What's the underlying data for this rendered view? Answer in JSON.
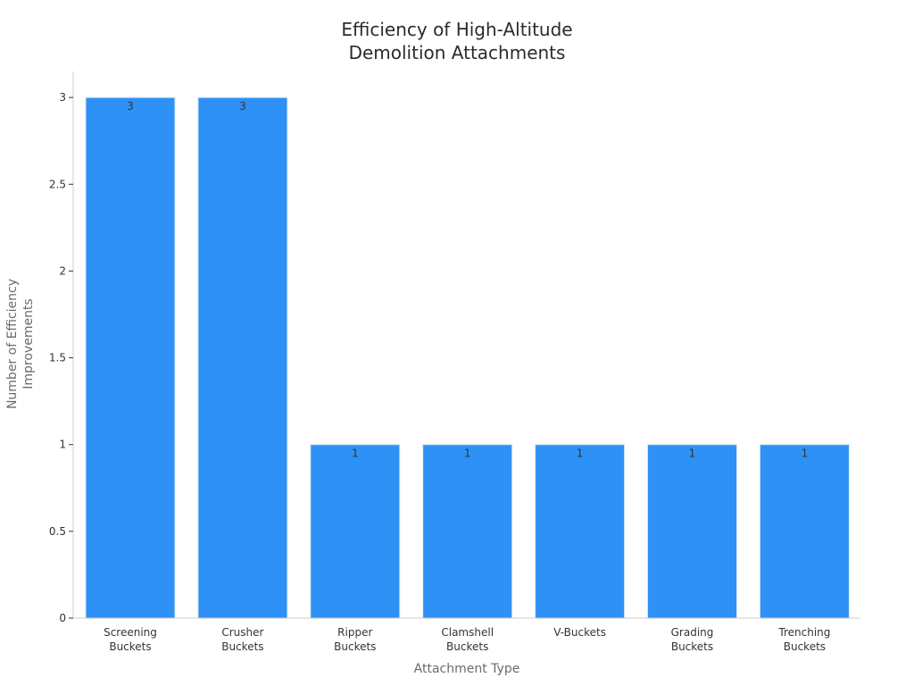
{
  "chart_data": {
    "type": "bar",
    "title": "Efficiency of High-Altitude\nDemolition Attachments",
    "xlabel": "Attachment Type",
    "ylabel": "Number of Efficiency\nImprovements",
    "categories": [
      "Screening\nBuckets",
      "Crusher\nBuckets",
      "Ripper\nBuckets",
      "Clamshell\nBuckets",
      "V-Buckets",
      "Grading\nBuckets",
      "Trenching\nBuckets"
    ],
    "values": [
      3,
      3,
      1,
      1,
      1,
      1,
      1
    ],
    "data_labels": [
      "3",
      "3",
      "1",
      "1",
      "1",
      "1",
      "1"
    ],
    "ylim": [
      0,
      3.15
    ],
    "yticks": [
      0,
      0.5,
      1,
      1.5,
      2,
      2.5,
      3
    ],
    "ytick_labels": [
      "0",
      "0.5",
      "1",
      "1.5",
      "2",
      "2.5",
      "3"
    ],
    "grid": false,
    "bar_color": "#2e91f5",
    "bar_edge_color": "#d8e6f5"
  }
}
